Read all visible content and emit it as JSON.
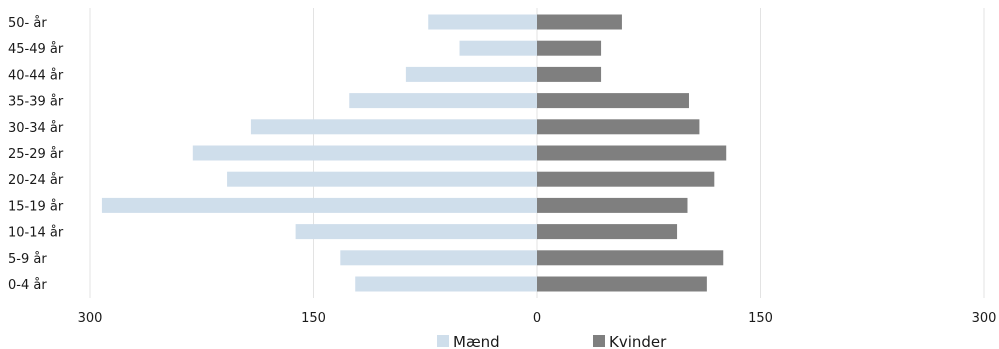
{
  "chart_data": {
    "type": "bar",
    "orientation": "horizontal",
    "layout": "population-pyramid",
    "categories": [
      "0-4 år",
      "5-9 år",
      "10-14 år",
      "15-19 år",
      "20-24 år",
      "25-29 år",
      "30-34 år",
      "35-39 år",
      "40-44 år",
      "45-49 år",
      "50- år"
    ],
    "series": [
      {
        "name": "Mænd",
        "color": "#cfdeeb",
        "values": [
          122,
          132,
          162,
          292,
          208,
          231,
          192,
          126,
          88,
          52,
          73
        ]
      },
      {
        "name": "Kvinder",
        "color": "#7f7f7f",
        "values": [
          114,
          125,
          94,
          101,
          119,
          127,
          109,
          102,
          43,
          43,
          57
        ]
      }
    ],
    "xlim": [
      -300,
      300
    ],
    "x_ticks": [
      -300,
      -150,
      0,
      150,
      300
    ],
    "x_tick_labels": [
      "300",
      "150",
      "0",
      "150",
      "300"
    ],
    "grid": "vertical",
    "legend_position": "bottom"
  }
}
